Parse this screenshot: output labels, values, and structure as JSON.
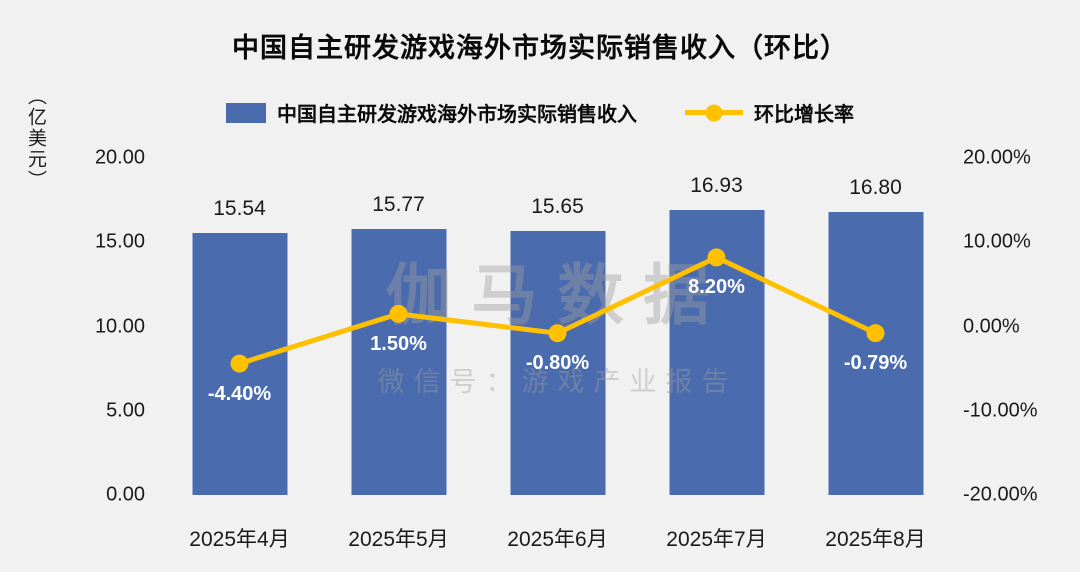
{
  "title": "中国自主研发游戏海外市场实际销售收入（环比）",
  "left_axis_unit": "（亿美元）",
  "legend": {
    "bar_label": "中国自主研发游戏海外市场实际销售收入",
    "line_label": "环比增长率"
  },
  "watermark": {
    "main": "伽马数据",
    "sub": "微信号：游戏产业报告"
  },
  "colors": {
    "bar": "#4a6bae",
    "line": "#ffc000",
    "background": "#f1f1f1",
    "bar_label_text": "#1a1a1a",
    "line_label_text": "#ffffff"
  },
  "chart_data": {
    "type": "bar+line",
    "title": "中国自主研发游戏海外市场实际销售收入（环比）",
    "categories": [
      "2025年4月",
      "2025年5月",
      "2025年6月",
      "2025年7月",
      "2025年8月"
    ],
    "series": [
      {
        "name": "中国自主研发游戏海外市场实际销售收入",
        "type": "bar",
        "axis": "left",
        "values": [
          15.54,
          15.77,
          15.65,
          16.93,
          16.8
        ],
        "labels": [
          "15.54",
          "15.77",
          "15.65",
          "16.93",
          "16.80"
        ]
      },
      {
        "name": "环比增长率",
        "type": "line",
        "axis": "right",
        "values": [
          -4.4,
          1.5,
          -0.8,
          8.2,
          -0.79
        ],
        "labels": [
          "-4.40%",
          "1.50%",
          "-0.80%",
          "8.20%",
          "-0.79%"
        ]
      }
    ],
    "left_axis": {
      "label": "（亿美元）",
      "min": 0,
      "max": 20,
      "ticks": [
        "20.00",
        "15.00",
        "10.00",
        "5.00",
        "0.00"
      ]
    },
    "right_axis": {
      "min": -20,
      "max": 20,
      "ticks": [
        "20.00%",
        "10.00%",
        "0.00%",
        "-10.00%",
        "-20.00%"
      ]
    },
    "grid": false,
    "legend_position": "top"
  }
}
